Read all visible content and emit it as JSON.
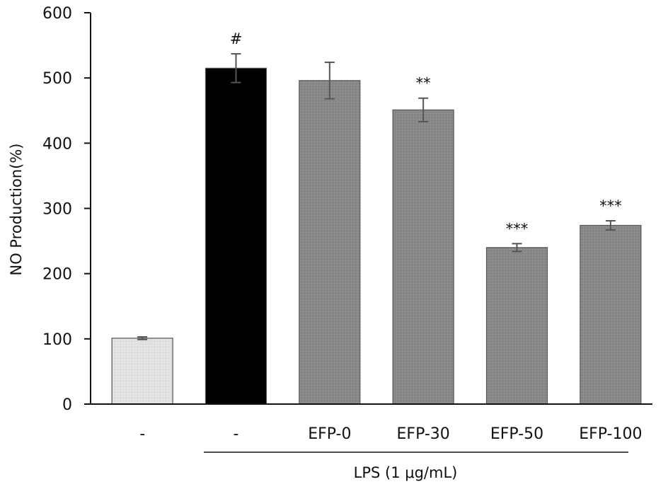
{
  "chart_data": {
    "type": "bar",
    "title": "",
    "ylabel": "NO Production(%)",
    "xlabel": "",
    "ylim": [
      0,
      600
    ],
    "yticks": [
      0,
      100,
      200,
      300,
      400,
      500,
      600
    ],
    "grid": false,
    "legend": "none",
    "categories": [
      "-",
      "-",
      "EFP-0",
      "EFP-30",
      "EFP-50",
      "EFP-100"
    ],
    "values": [
      101,
      515,
      496,
      451,
      240,
      274
    ],
    "errors": [
      2,
      22,
      28,
      18,
      6,
      7
    ],
    "annotations": [
      "",
      "#",
      "",
      "**",
      "***",
      "***"
    ],
    "bar_colors": [
      "#e2e2e2",
      "#000000",
      "#888888",
      "#888888",
      "#888888",
      "#888888"
    ],
    "group_label": "LPS (1 μg/mL)"
  }
}
